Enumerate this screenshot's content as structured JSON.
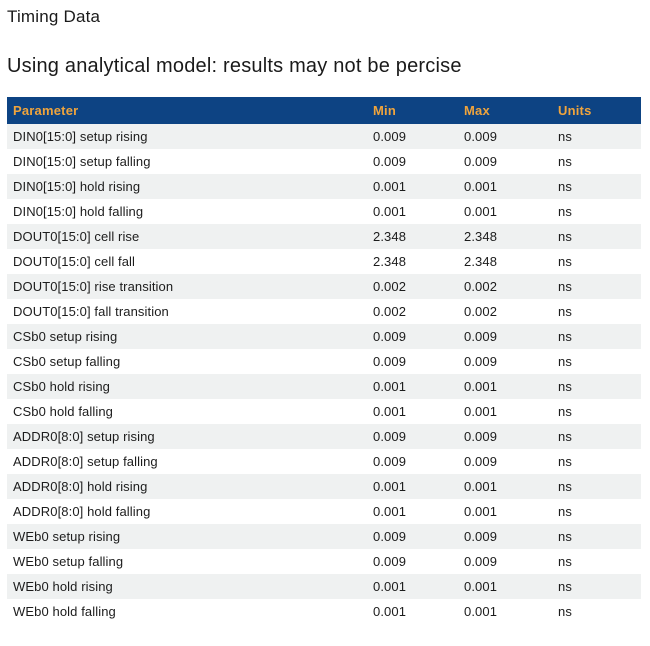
{
  "page": {
    "title": "Timing Data",
    "subtitle": "Using analytical model: results may not be percise"
  },
  "colors": {
    "header_bg": "#0d4383",
    "header_text": "#efa43d",
    "row_alt_bg": "#eff1f1",
    "row_text": "#1c1c1c"
  },
  "table": {
    "columns": [
      "Parameter",
      "Min",
      "Max",
      "Units"
    ],
    "rows": [
      {
        "parameter": "DIN0[15:0] setup rising",
        "min": "0.009",
        "max": "0.009",
        "units": "ns"
      },
      {
        "parameter": "DIN0[15:0] setup falling",
        "min": "0.009",
        "max": "0.009",
        "units": "ns"
      },
      {
        "parameter": "DIN0[15:0] hold rising",
        "min": "0.001",
        "max": "0.001",
        "units": "ns"
      },
      {
        "parameter": "DIN0[15:0] hold falling",
        "min": "0.001",
        "max": "0.001",
        "units": "ns"
      },
      {
        "parameter": "DOUT0[15:0] cell rise",
        "min": "2.348",
        "max": "2.348",
        "units": "ns"
      },
      {
        "parameter": "DOUT0[15:0] cell fall",
        "min": "2.348",
        "max": "2.348",
        "units": "ns"
      },
      {
        "parameter": "DOUT0[15:0] rise transition",
        "min": "0.002",
        "max": "0.002",
        "units": "ns"
      },
      {
        "parameter": "DOUT0[15:0] fall transition",
        "min": "0.002",
        "max": "0.002",
        "units": "ns"
      },
      {
        "parameter": "CSb0 setup rising",
        "min": "0.009",
        "max": "0.009",
        "units": "ns"
      },
      {
        "parameter": "CSb0 setup falling",
        "min": "0.009",
        "max": "0.009",
        "units": "ns"
      },
      {
        "parameter": "CSb0 hold rising",
        "min": "0.001",
        "max": "0.001",
        "units": "ns"
      },
      {
        "parameter": "CSb0 hold falling",
        "min": "0.001",
        "max": "0.001",
        "units": "ns"
      },
      {
        "parameter": "ADDR0[8:0] setup rising",
        "min": "0.009",
        "max": "0.009",
        "units": "ns"
      },
      {
        "parameter": "ADDR0[8:0] setup falling",
        "min": "0.009",
        "max": "0.009",
        "units": "ns"
      },
      {
        "parameter": "ADDR0[8:0] hold rising",
        "min": "0.001",
        "max": "0.001",
        "units": "ns"
      },
      {
        "parameter": "ADDR0[8:0] hold falling",
        "min": "0.001",
        "max": "0.001",
        "units": "ns"
      },
      {
        "parameter": "WEb0 setup rising",
        "min": "0.009",
        "max": "0.009",
        "units": "ns"
      },
      {
        "parameter": "WEb0 setup falling",
        "min": "0.009",
        "max": "0.009",
        "units": "ns"
      },
      {
        "parameter": "WEb0 hold rising",
        "min": "0.001",
        "max": "0.001",
        "units": "ns"
      },
      {
        "parameter": "WEb0 hold falling",
        "min": "0.001",
        "max": "0.001",
        "units": "ns"
      }
    ]
  }
}
